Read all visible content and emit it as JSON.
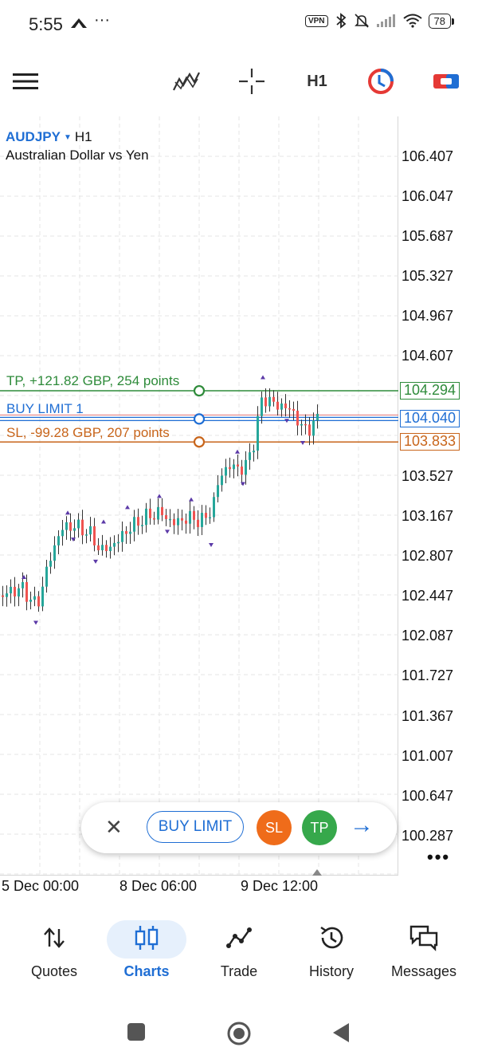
{
  "status_bar": {
    "time": "5:55",
    "left_icons": "⏶ ···",
    "vpn": "VPN",
    "battery": "78"
  },
  "toolbar": {
    "indicators_icon": "indicators-icon",
    "crosshair_icon": "crosshair-icon",
    "timeframe": "H1",
    "one_click_icon": "one-click-trading-icon",
    "new_order_icon": "new-order-icon"
  },
  "chart": {
    "symbol": "AUDJPY",
    "timeframe": "H1",
    "description": "Australian Dollar vs Yen",
    "price_axis": [
      "106.407",
      "106.047",
      "105.687",
      "105.327",
      "104.967",
      "104.607",
      "103.527",
      "103.167",
      "102.807",
      "102.447",
      "102.087",
      "101.727",
      "101.367",
      "101.007",
      "100.647",
      "100.287"
    ],
    "time_axis": [
      "5 Dec 00:00",
      "8 Dec 06:00",
      "9 Dec 12:00"
    ],
    "levels": {
      "tp": {
        "label": "TP, +121.82 GBP, 254 points",
        "price": "104.294",
        "color": "#2e8b3a"
      },
      "buy_limit": {
        "label": "BUY LIMIT 1",
        "price": "104.040",
        "color": "#1f6ed4"
      },
      "sl": {
        "label": "SL, -99.28 GBP, 207 points",
        "price": "103.833",
        "color": "#c8651b"
      }
    },
    "colors": {
      "bull": "#26a69a",
      "bear": "#ef5350"
    }
  },
  "order_bar": {
    "type": "BUY LIMIT",
    "sl": "SL",
    "tp": "TP"
  },
  "more": "•••",
  "bottom_nav": [
    {
      "label": "Quotes",
      "icon": "quotes-icon"
    },
    {
      "label": "Charts",
      "icon": "charts-icon",
      "active": true
    },
    {
      "label": "Trade",
      "icon": "trade-icon"
    },
    {
      "label": "History",
      "icon": "history-icon"
    },
    {
      "label": "Messages",
      "icon": "messages-icon"
    }
  ]
}
